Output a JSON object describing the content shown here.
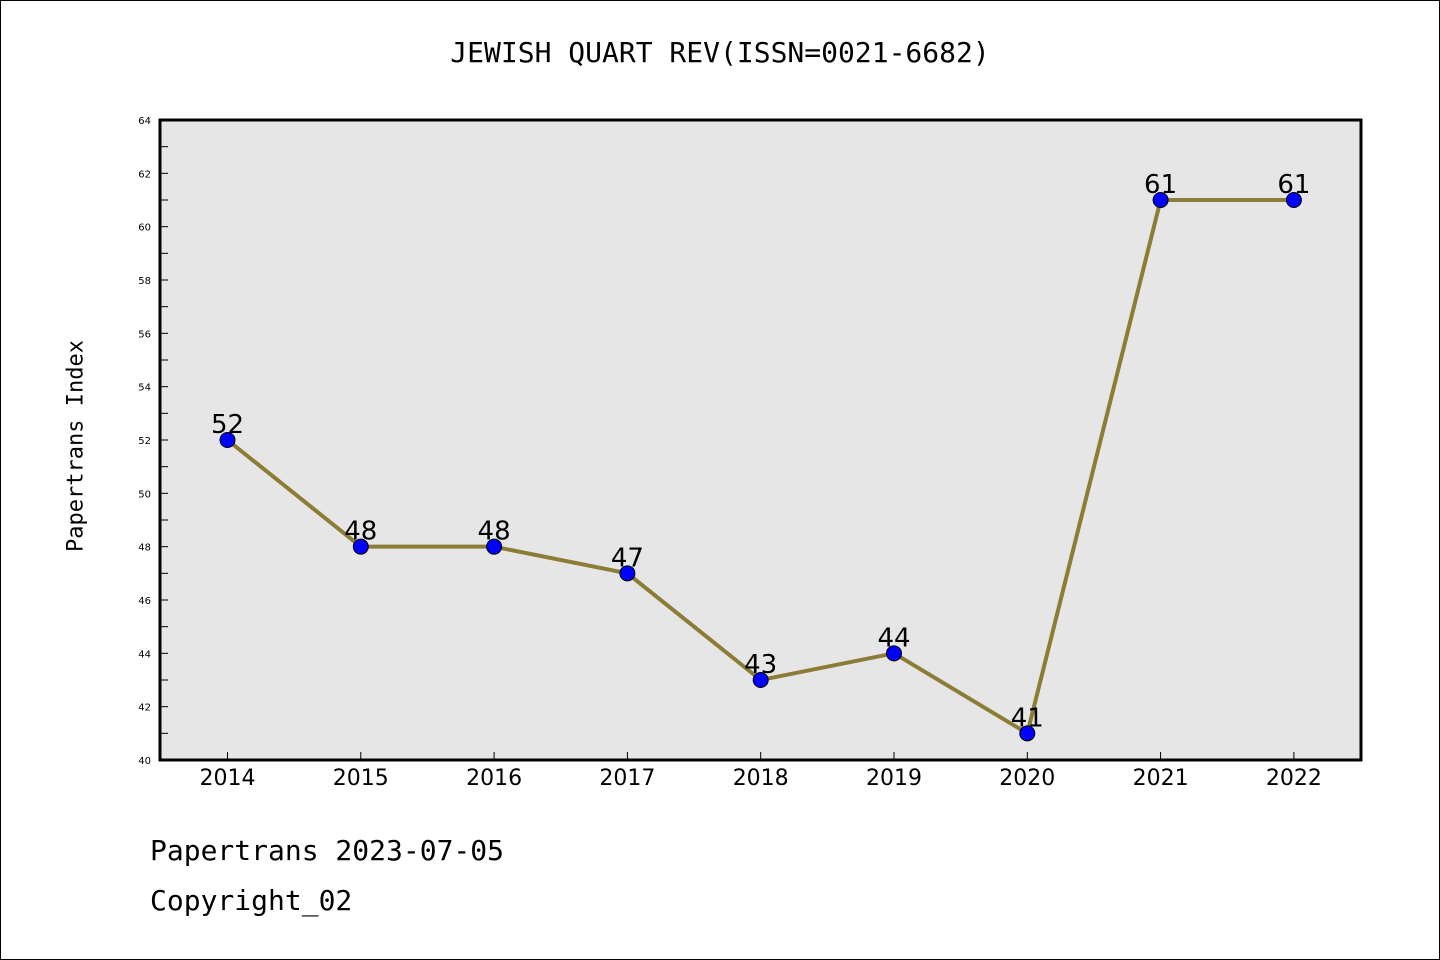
{
  "chart_data": {
    "type": "line",
    "title": "JEWISH QUART REV(ISSN=0021-6682)",
    "xlabel": "",
    "ylabel": "Papertrans Index",
    "categories": [
      "2014",
      "2015",
      "2016",
      "2017",
      "2018",
      "2019",
      "2020",
      "2021",
      "2022"
    ],
    "series": [
      {
        "values": [
          52,
          48,
          48,
          47,
          43,
          44,
          41,
          61,
          61
        ]
      }
    ],
    "ylim": [
      40,
      64
    ],
    "yticks": [
      40,
      42,
      44,
      46,
      48,
      50,
      52,
      54,
      56,
      58,
      60,
      62,
      64
    ],
    "grid": false,
    "legend": "none",
    "colors": {
      "line": "#8b7d35",
      "marker": "#0000ff",
      "plot_background": "#e6e6e6"
    }
  },
  "footer": {
    "line1": "Papertrans 2023-07-05",
    "line2": "Copyright_02"
  }
}
